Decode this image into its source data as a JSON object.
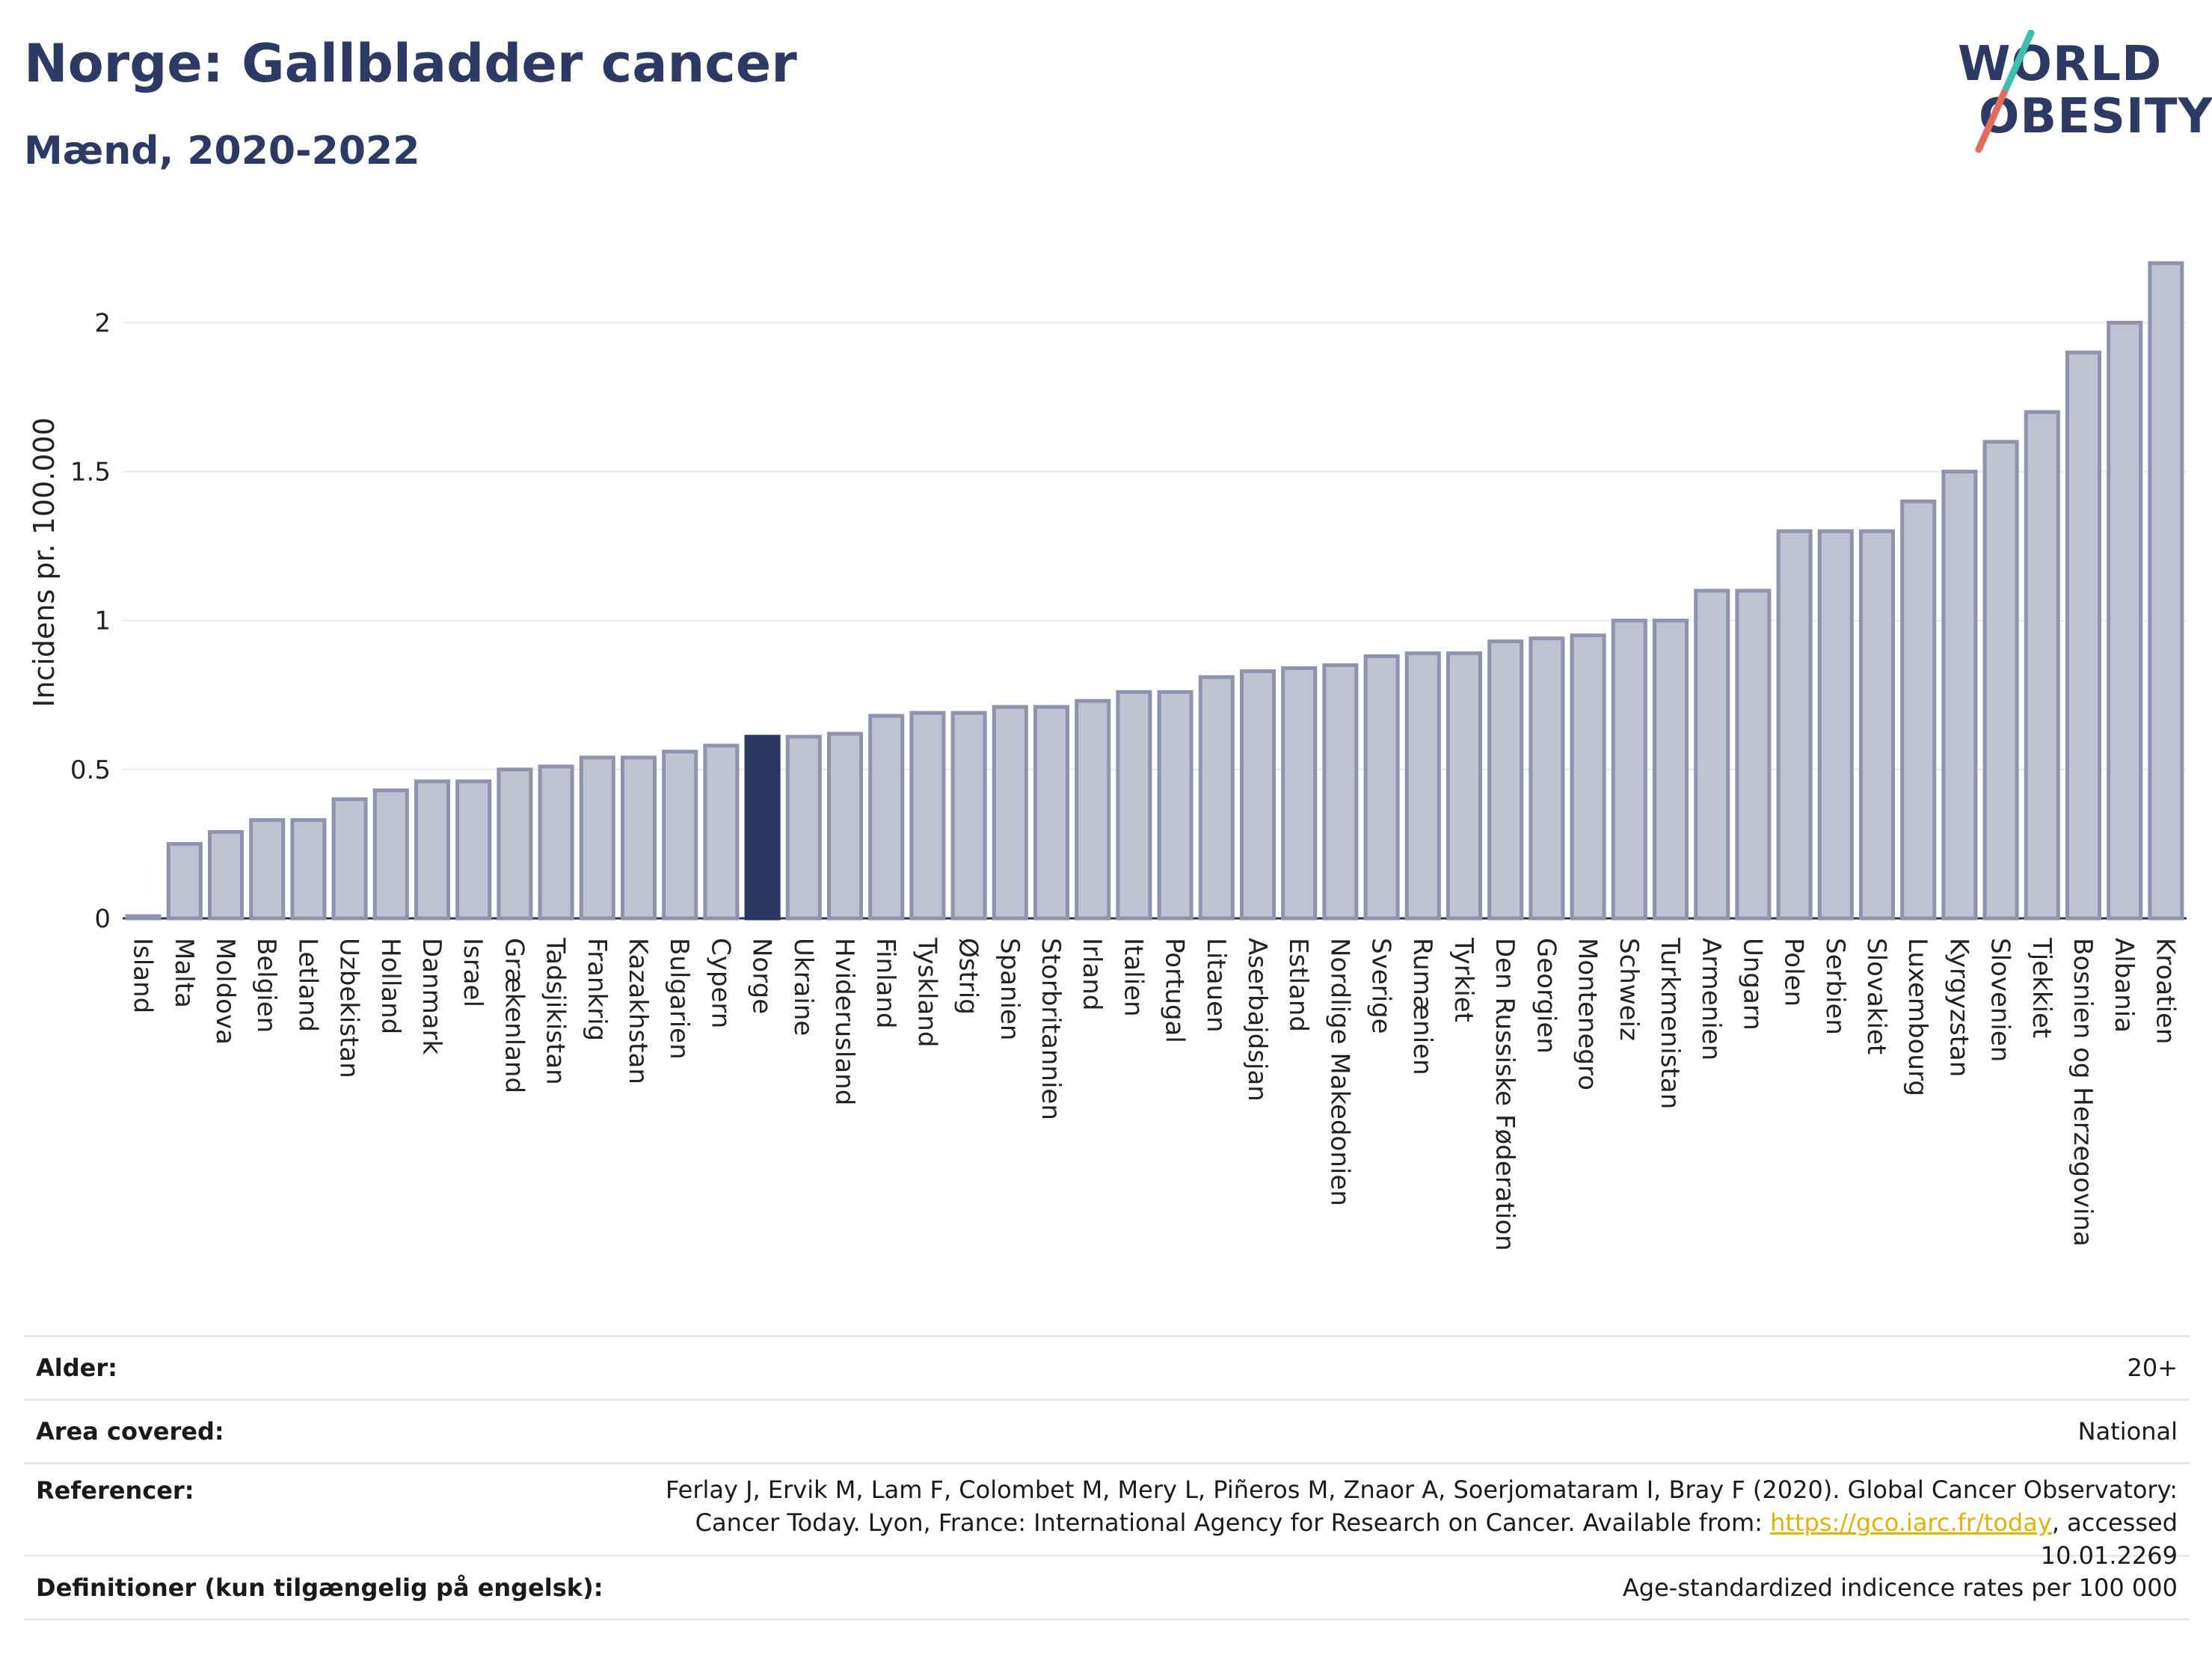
{
  "header": {
    "title": "Norge: Gallbladder cancer",
    "subtitle": "Mænd, 2020-2022"
  },
  "logo": {
    "line1": "WORLD",
    "line2": "OBESITY"
  },
  "chart_data": {
    "type": "bar",
    "ylabel": "Incidens pr. 100.000",
    "ylim": [
      0,
      2.3
    ],
    "yticks": [
      0,
      0.5,
      1,
      1.5,
      2
    ],
    "ytick_labels": [
      "0",
      "0.5",
      "1",
      "1.5",
      "2"
    ],
    "grid": true,
    "highlight": "Norge",
    "colors": {
      "bar": "#bfc3d1",
      "bar_border": "#8e94ad",
      "highlight": "#2b3562",
      "grid": "#e8e8ee"
    },
    "categories": [
      "Island",
      "Malta",
      "Moldova",
      "Belgien",
      "Letland",
      "Uzbekistan",
      "Holland",
      "Danmark",
      "Israel",
      "Grækenland",
      "Tadsjikistan",
      "Frankrig",
      "Kazakhstan",
      "Bulgarien",
      "Cypern",
      "Norge",
      "Ukraine",
      "Hviderusland",
      "Finland",
      "Tyskland",
      "Østrig",
      "Spanien",
      "Storbritannien",
      "Irland",
      "Italien",
      "Portugal",
      "Litauen",
      "Aserbajdsjan",
      "Estland",
      "Nordlige Makedonien",
      "Sverige",
      "Rumænien",
      "Tyrkiet",
      "Den Russiske Føderation",
      "Georgien",
      "Montenegro",
      "Schweiz",
      "Turkmenistan",
      "Armenien",
      "Ungarn",
      "Polen",
      "Serbien",
      "Slovakiet",
      "Luxembourg",
      "Kyrgyzstan",
      "Slovenien",
      "Tjekkiet",
      "Bosnien og Herzegovina",
      "Albania",
      "Kroatien"
    ],
    "values": [
      0.0,
      0.25,
      0.29,
      0.33,
      0.33,
      0.4,
      0.43,
      0.46,
      0.46,
      0.5,
      0.51,
      0.54,
      0.54,
      0.56,
      0.58,
      0.61,
      0.61,
      0.62,
      0.68,
      0.69,
      0.69,
      0.71,
      0.71,
      0.73,
      0.76,
      0.76,
      0.81,
      0.83,
      0.84,
      0.85,
      0.88,
      0.89,
      0.89,
      0.93,
      0.94,
      0.95,
      1.0,
      1.0,
      1.1,
      1.1,
      1.3,
      1.3,
      1.3,
      1.4,
      1.5,
      1.6,
      1.7,
      1.9,
      2.0,
      2.2
    ]
  },
  "footer": {
    "rows": [
      {
        "label": "Alder:",
        "value": "20+"
      },
      {
        "label": "Area covered:",
        "value": "National"
      },
      {
        "label": "Referencer:",
        "value_pre": "Ferlay J, Ervik M, Lam F, Colombet M, Mery L, Piñeros M, Znaor A, Soerjomataram I, Bray F (2020). Global Cancer Observatory: Cancer Today. Lyon, France: International Agency for Research on Cancer. Available from: ",
        "link": "https://gco.iarc.fr/today",
        "value_post": ", accessed 10.01.2269"
      },
      {
        "label": "Definitioner (kun tilgængelig på engelsk):",
        "value": "Age-standardized indicence rates per 100 000"
      }
    ]
  }
}
